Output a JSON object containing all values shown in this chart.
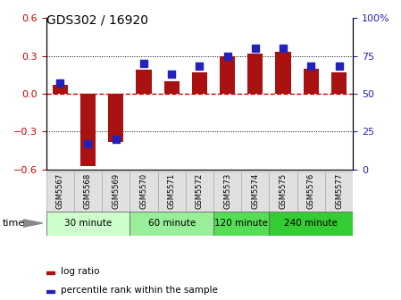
{
  "title": "GDS302 / 16920",
  "samples": [
    "GSM5567",
    "GSM5568",
    "GSM5569",
    "GSM5570",
    "GSM5571",
    "GSM5572",
    "GSM5573",
    "GSM5574",
    "GSM5575",
    "GSM5576",
    "GSM5577"
  ],
  "log_ratio": [
    0.07,
    -0.57,
    -0.38,
    0.19,
    0.1,
    0.17,
    0.3,
    0.32,
    0.33,
    0.2,
    0.17
  ],
  "percentile": [
    57,
    17,
    20,
    70,
    63,
    68,
    75,
    80,
    80,
    68,
    68
  ],
  "ylim_left": [
    -0.6,
    0.6
  ],
  "ylim_right": [
    0,
    100
  ],
  "yticks_left": [
    -0.6,
    -0.3,
    0.0,
    0.3,
    0.6
  ],
  "yticks_right": [
    0,
    25,
    50,
    75,
    100
  ],
  "ytick_labels_right": [
    "0",
    "25",
    "50",
    "75",
    "100%"
  ],
  "bar_color": "#aa1111",
  "dot_color": "#2222bb",
  "zero_line_color": "#cc0000",
  "grid_color": "#000000",
  "groups": [
    {
      "label": "30 minute",
      "n": 3,
      "color": "#ccffcc"
    },
    {
      "label": "60 minute",
      "n": 3,
      "color": "#99ee99"
    },
    {
      "label": "120 minute",
      "n": 2,
      "color": "#55dd55"
    },
    {
      "label": "240 minute",
      "n": 3,
      "color": "#33cc33"
    }
  ],
  "xlabel_time": "time",
  "legend_log_ratio": "log ratio",
  "legend_percentile": "percentile rank within the sample",
  "bg_color": "#ffffff",
  "plot_bg": "#ffffff",
  "tick_label_color_left": "#cc0000",
  "tick_label_color_right": "#2222bb",
  "sample_bg": "#e0e0e0",
  "sample_border": "#aaaaaa"
}
